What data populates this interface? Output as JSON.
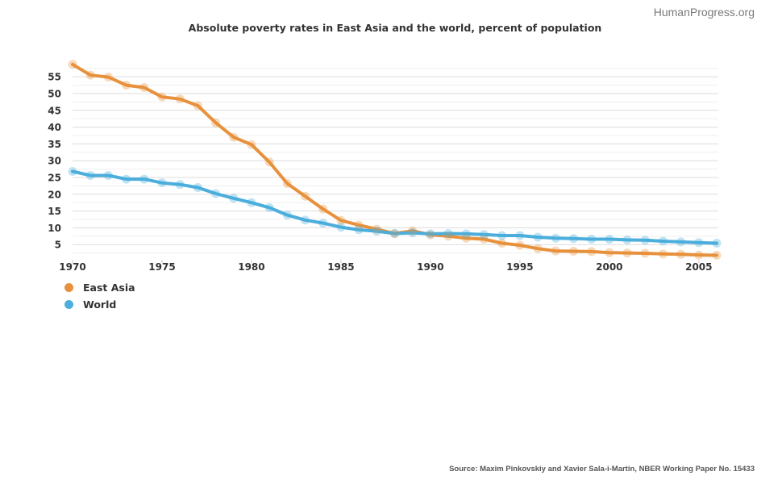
{
  "brand": "HumanProgress.org",
  "source": "Source: Maxim Pinkovskiy and Xavier Sala-i-Martin, NBER Working Paper No. 15433",
  "chart_data": {
    "type": "line",
    "title": "Absolute poverty rates in East Asia and the world, percent of population",
    "xlabel": "",
    "ylabel": "",
    "x": [
      1970,
      1971,
      1972,
      1973,
      1974,
      1975,
      1976,
      1977,
      1978,
      1979,
      1980,
      1981,
      1982,
      1983,
      1984,
      1985,
      1986,
      1987,
      1988,
      1989,
      1990,
      1991,
      1992,
      1993,
      1994,
      1995,
      1996,
      1997,
      1998,
      1999,
      2000,
      2001,
      2002,
      2003,
      2004,
      2005,
      2006
    ],
    "xlim": [
      1970,
      2006
    ],
    "ylim": [
      0,
      57.5
    ],
    "xticks": [
      1970,
      1975,
      1980,
      1985,
      1990,
      1995,
      2000,
      2005
    ],
    "xtick_labels": [
      "1970",
      "1975",
      "1980",
      "1985",
      "1990",
      "1995",
      "2000",
      "2005"
    ],
    "yticks": [
      5,
      10,
      15,
      20,
      25,
      30,
      35,
      40,
      45,
      50,
      55
    ],
    "ytick_labels": [
      "5",
      "10",
      "15",
      "20",
      "25",
      "30",
      "35",
      "40",
      "45",
      "50",
      "55"
    ],
    "grid": true,
    "legend_position": "bottom-left",
    "series": [
      {
        "name": "East Asia",
        "color": "#E8913D",
        "values": [
          58.7,
          55.5,
          54.9,
          52.5,
          51.8,
          49.0,
          48.4,
          46.4,
          41.3,
          37.0,
          34.8,
          29.6,
          23.2,
          19.4,
          15.6,
          12.2,
          10.8,
          9.6,
          8.3,
          9.1,
          7.9,
          7.5,
          6.9,
          6.6,
          5.4,
          4.8,
          3.8,
          3.1,
          3.0,
          2.9,
          2.6,
          2.5,
          2.4,
          2.2,
          2.1,
          1.9,
          1.8
        ]
      },
      {
        "name": "World",
        "color": "#4BAEDC",
        "values": [
          26.8,
          25.6,
          25.6,
          24.5,
          24.5,
          23.4,
          22.9,
          22.0,
          20.2,
          18.8,
          17.5,
          16.0,
          13.8,
          12.3,
          11.4,
          10.2,
          9.4,
          9.0,
          8.3,
          8.5,
          8.2,
          8.3,
          8.2,
          8.0,
          7.7,
          7.7,
          7.2,
          6.9,
          6.8,
          6.6,
          6.6,
          6.4,
          6.3,
          6.0,
          5.8,
          5.6,
          5.4
        ]
      }
    ]
  }
}
